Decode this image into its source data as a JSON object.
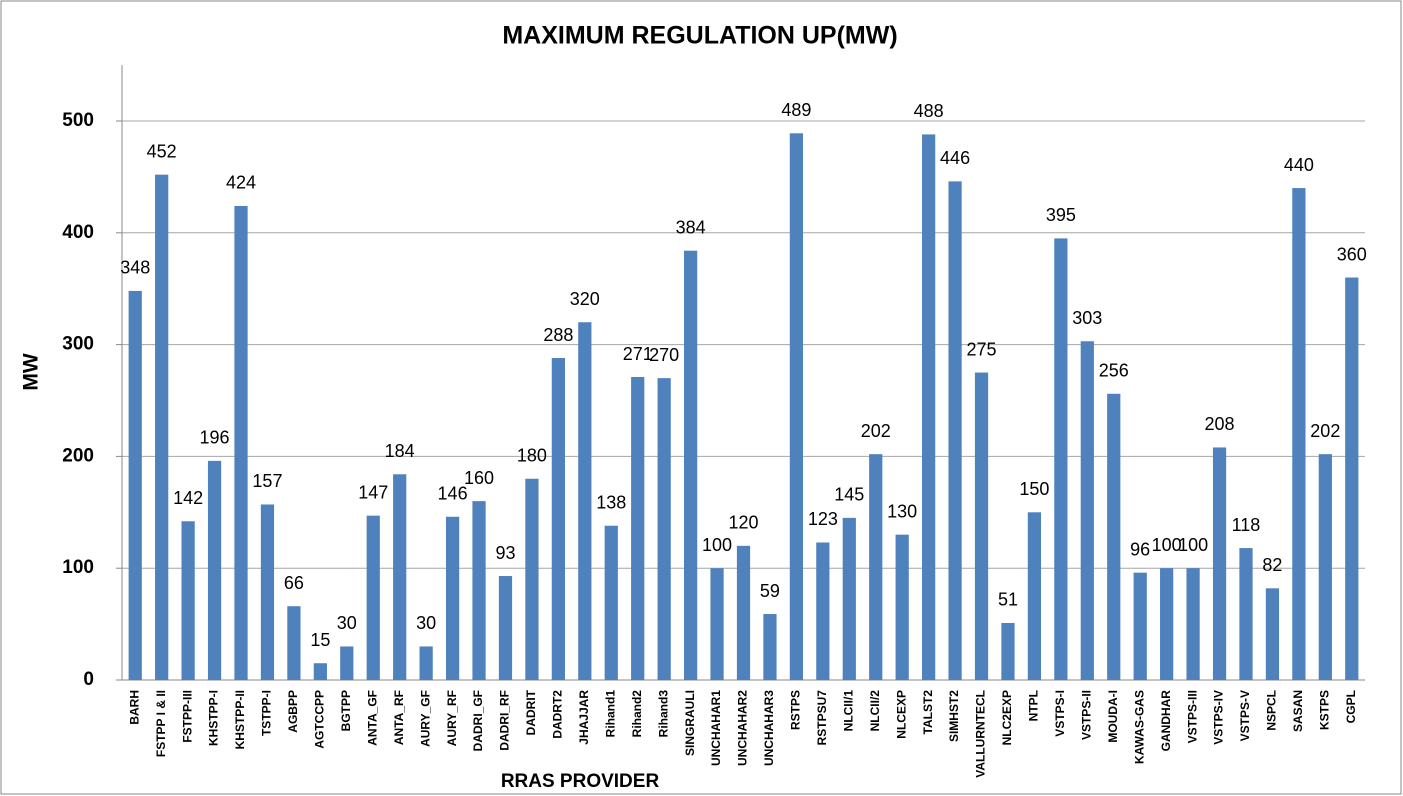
{
  "chart_data": {
    "type": "bar",
    "title": "MAXIMUM REGULATION UP(MW)",
    "x_label": "RRAS PROVIDER",
    "y_label": "MW",
    "categories": [
      "BARH",
      "FSTPP I & II",
      "FSTPP-III",
      "KHSTPP-I",
      "KHSTPP-II",
      "TSTPP-I",
      "AGBPP",
      "AGTCCPP",
      "BGTPP",
      "ANTA_GF",
      "ANTA_RF",
      "AURY_GF",
      "AURY_RF",
      "DADRI_GF",
      "DADRI_RF",
      "DADRIT",
      "DADRT2",
      "JHAJJAR",
      "Rihand1",
      "Rihand2",
      "Rihand3",
      "SINGRAULI",
      "UNCHAHAR1",
      "UNCHAHAR2",
      "UNCHAHAR3",
      "RSTPS",
      "RSTPSU7",
      "NLCII/1",
      "NLCII/2",
      "NLCEXP",
      "TALST2",
      "SIMHST2",
      "VALLURNTECL",
      "NLC2EXP",
      "NTPL",
      "VSTPS-I",
      "VSTPS-II",
      "MOUDA-I",
      "KAWAS-GAS",
      "GANDHAR",
      "VSTPS-III",
      "VSTPS-IV",
      "VSTPS-V",
      "NSPCL",
      "SASAN",
      "KSTPS",
      "CGPL"
    ],
    "values": [
      348,
      452,
      142,
      196,
      424,
      157,
      66,
      15,
      30,
      147,
      184,
      30,
      146,
      160,
      93,
      180,
      288,
      320,
      138,
      271,
      270,
      384,
      100,
      120,
      59,
      489,
      123,
      145,
      202,
      130,
      488,
      446,
      275,
      51,
      150,
      395,
      303,
      256,
      96,
      100,
      100,
      208,
      118,
      82,
      440,
      202,
      360
    ],
    "color": "#4f81bd",
    "ylim": [
      0,
      550
    ],
    "yticks": [
      0,
      100,
      200,
      300,
      400,
      500
    ],
    "grid": true
  }
}
